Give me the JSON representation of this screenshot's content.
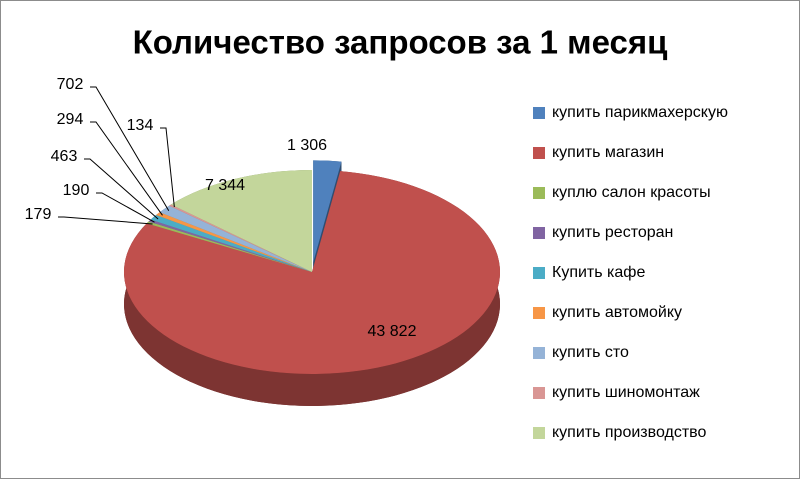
{
  "chart_data": {
    "type": "pie3d",
    "title": "Количество запросов за 1 месяц",
    "categories": [
      "купить парикмахерскую",
      "купить магазин",
      "куплю салон красоты",
      "купить ресторан",
      "Купить кафе",
      "купить автомойку",
      "купить сто",
      "купить шиномонтаж",
      "купить производство"
    ],
    "values": [
      1306,
      43822,
      179,
      190,
      463,
      294,
      702,
      134,
      7344
    ],
    "value_labels": [
      "1 306",
      "43 822",
      "179",
      "190",
      "463",
      "294",
      "702",
      "134",
      "7 344"
    ],
    "colors": [
      "#4f81bd",
      "#c0504d",
      "#9bbb59",
      "#8064a2",
      "#4bacc6",
      "#f79646",
      "#95b3d7",
      "#d99694",
      "#c3d69b"
    ],
    "legend": "right"
  }
}
